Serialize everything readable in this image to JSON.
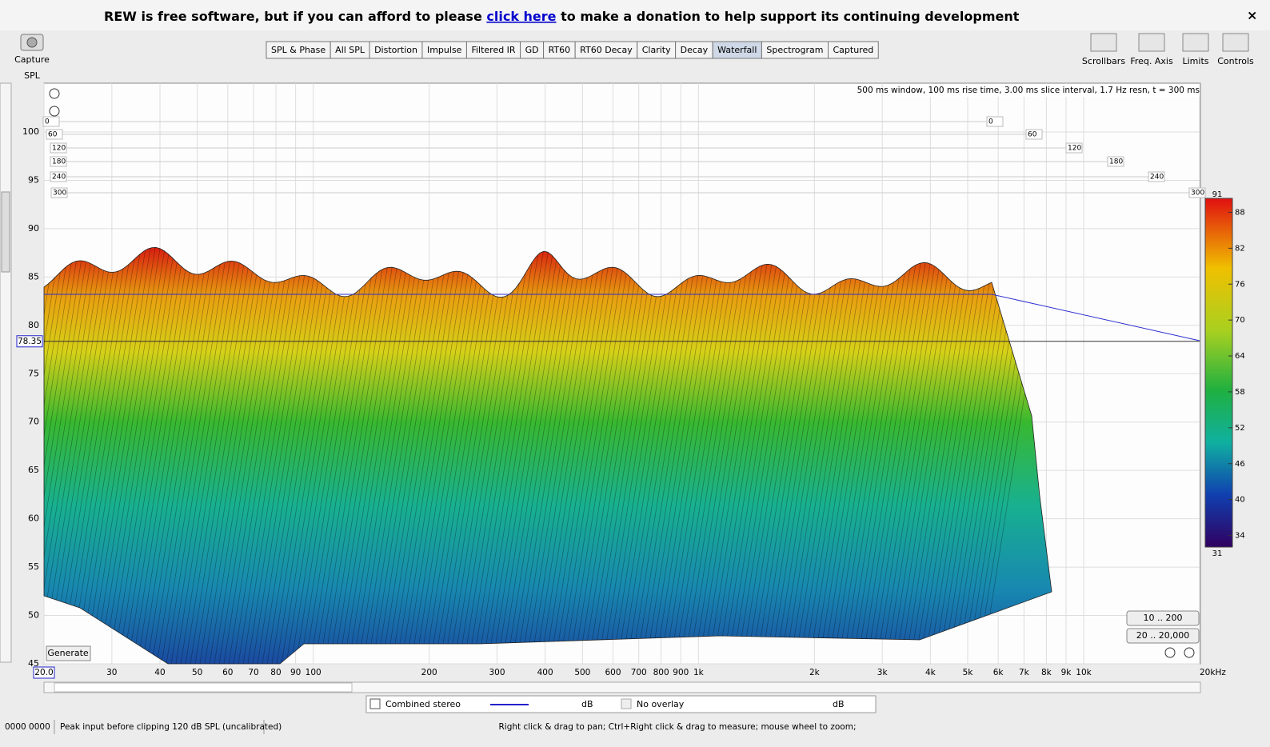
{
  "banner": {
    "text_before": "REW is free software, but if you can afford to please",
    "link": "click here",
    "text_after": "to make a donation to help support its continuing development",
    "close": "×"
  },
  "toolbar_left": {
    "capture": "Capture"
  },
  "tabs": [
    "SPL & Phase",
    "All SPL",
    "Distortion",
    "Impulse",
    "Filtered IR",
    "GD",
    "RT60",
    "RT60 Decay",
    "Clarity",
    "Decay",
    "Waterfall",
    "Spectrogram",
    "Captured"
  ],
  "selected_tab": "Waterfall",
  "toolbar_right": [
    "Scrollbars",
    "Freq. Axis",
    "Limits",
    "Controls"
  ],
  "y_axis": {
    "label": "SPL",
    "ticks": [
      100,
      95,
      90,
      85,
      80,
      75,
      70,
      65,
      60,
      55,
      50,
      45
    ]
  },
  "cursor_value": 78.35,
  "x_axis": {
    "ticks": [
      {
        "value": 20,
        "label": "20.0"
      },
      30,
      40,
      50,
      60,
      70,
      80,
      90,
      100,
      200,
      300,
      400,
      500,
      600,
      700,
      800,
      900,
      {
        "value": 1000,
        "label": "1k"
      },
      {
        "value": 2000,
        "label": "2k"
      },
      {
        "value": 3000,
        "label": "3k"
      },
      {
        "value": 4000,
        "label": "4k"
      },
      {
        "value": 5000,
        "label": "5k"
      },
      {
        "value": 6000,
        "label": "6k"
      },
      {
        "value": 7000,
        "label": "7k"
      },
      {
        "value": 8000,
        "label": "8k"
      },
      {
        "value": 9000,
        "label": "9k"
      },
      {
        "value": 10000,
        "label": "10k"
      },
      {
        "value": 20000,
        "label": "20kHz"
      }
    ]
  },
  "info": "500 ms window, 100 ms rise time, 3.00 ms slice interval, 1.7 Hz resn, t = 300 ms",
  "time_slices": [
    0,
    60,
    120,
    180,
    240,
    300
  ],
  "colorbar": [
    91,
    88,
    82,
    76,
    70,
    64,
    58,
    52,
    46,
    40,
    34,
    31
  ],
  "buttons": {
    "range_low": "10 .. 200",
    "range_full": "20 .. 20,000",
    "generate": "Generate"
  },
  "legend": {
    "combined": "Combined stereo",
    "combined_unit": "dB",
    "overlay": "No overlay",
    "overlay_unit": "dB"
  },
  "status": {
    "counter": "0000 0000",
    "peak": "Peak input before clipping 120 dB SPL (uncalibrated)",
    "hint": "Right click & drag to pan; Ctrl+Right click & drag to measure; mouse wheel to zoom;"
  }
}
